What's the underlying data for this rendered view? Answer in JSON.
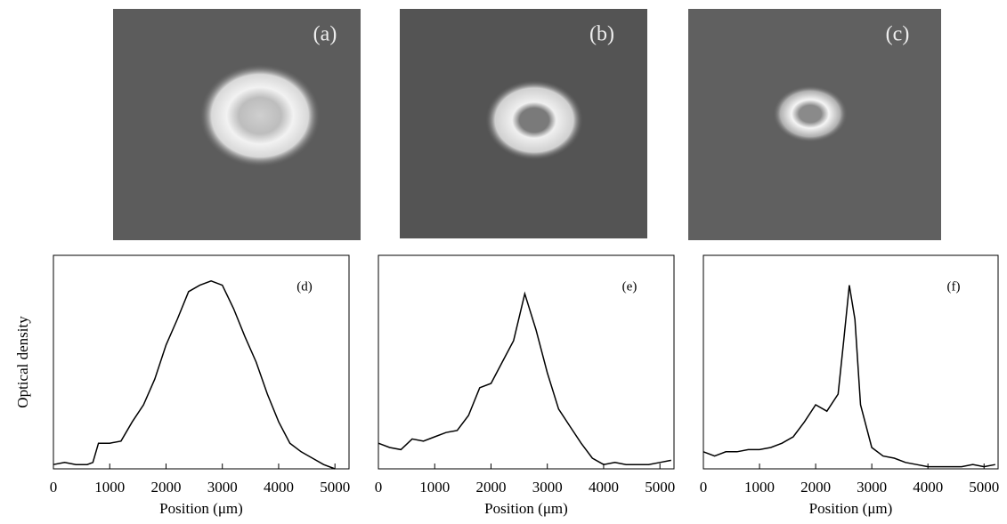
{
  "images": {
    "labels": [
      "(a)",
      "(b)",
      "(c)"
    ]
  },
  "chart_data": [
    {
      "type": "line",
      "label": "(d)",
      "xlabel": "Position (μm)",
      "ylabel": "Optical density",
      "color": "#000000",
      "x": [
        0,
        200,
        400,
        600,
        700,
        800,
        1000,
        1200,
        1400,
        1600,
        1800,
        2000,
        2200,
        2400,
        2600,
        2800,
        3000,
        3200,
        3400,
        3600,
        3800,
        4000,
        4200,
        4400,
        4600,
        4800,
        5000
      ],
      "values": [
        0.02,
        0.03,
        0.02,
        0.02,
        0.03,
        0.12,
        0.12,
        0.13,
        0.22,
        0.3,
        0.42,
        0.58,
        0.7,
        0.83,
        0.86,
        0.88,
        0.86,
        0.75,
        0.62,
        0.5,
        0.35,
        0.22,
        0.12,
        0.08,
        0.05,
        0.02,
        0.0
      ],
      "xlim": [
        0,
        5250
      ],
      "ylim": [
        0,
        1
      ],
      "xticks": [
        0,
        1000,
        2000,
        3000,
        4000,
        5000
      ]
    },
    {
      "type": "line",
      "label": "(e)",
      "xlabel": "Position (μm)",
      "color": "#000000",
      "x": [
        0,
        200,
        400,
        600,
        800,
        1000,
        1200,
        1400,
        1600,
        1800,
        2000,
        2200,
        2400,
        2600,
        2800,
        3000,
        3200,
        3400,
        3600,
        3800,
        4000,
        4200,
        4400,
        4600,
        4800,
        5000,
        5200
      ],
      "values": [
        0.12,
        0.1,
        0.09,
        0.14,
        0.13,
        0.15,
        0.17,
        0.18,
        0.25,
        0.38,
        0.4,
        0.5,
        0.6,
        0.82,
        0.65,
        0.45,
        0.28,
        0.2,
        0.12,
        0.05,
        0.02,
        0.03,
        0.02,
        0.02,
        0.02,
        0.03,
        0.04
      ],
      "xlim": [
        0,
        5250
      ],
      "ylim": [
        0,
        1
      ],
      "xticks": [
        0,
        1000,
        2000,
        3000,
        4000,
        5000
      ]
    },
    {
      "type": "line",
      "label": "(f)",
      "xlabel": "Position (μm)",
      "color": "#000000",
      "x": [
        0,
        200,
        400,
        600,
        800,
        1000,
        1200,
        1400,
        1600,
        1800,
        2000,
        2200,
        2400,
        2500,
        2600,
        2700,
        2800,
        3000,
        3200,
        3400,
        3600,
        3800,
        4000,
        4200,
        4400,
        4600,
        4800,
        5000,
        5200
      ],
      "values": [
        0.08,
        0.06,
        0.08,
        0.08,
        0.09,
        0.09,
        0.1,
        0.12,
        0.15,
        0.22,
        0.3,
        0.27,
        0.35,
        0.6,
        0.86,
        0.7,
        0.3,
        0.1,
        0.06,
        0.05,
        0.03,
        0.02,
        0.01,
        0.01,
        0.01,
        0.01,
        0.02,
        0.01,
        0.02
      ],
      "xlim": [
        0,
        5250
      ],
      "ylim": [
        0,
        1
      ],
      "xticks": [
        0,
        1000,
        2000,
        3000,
        4000,
        5000
      ]
    }
  ]
}
